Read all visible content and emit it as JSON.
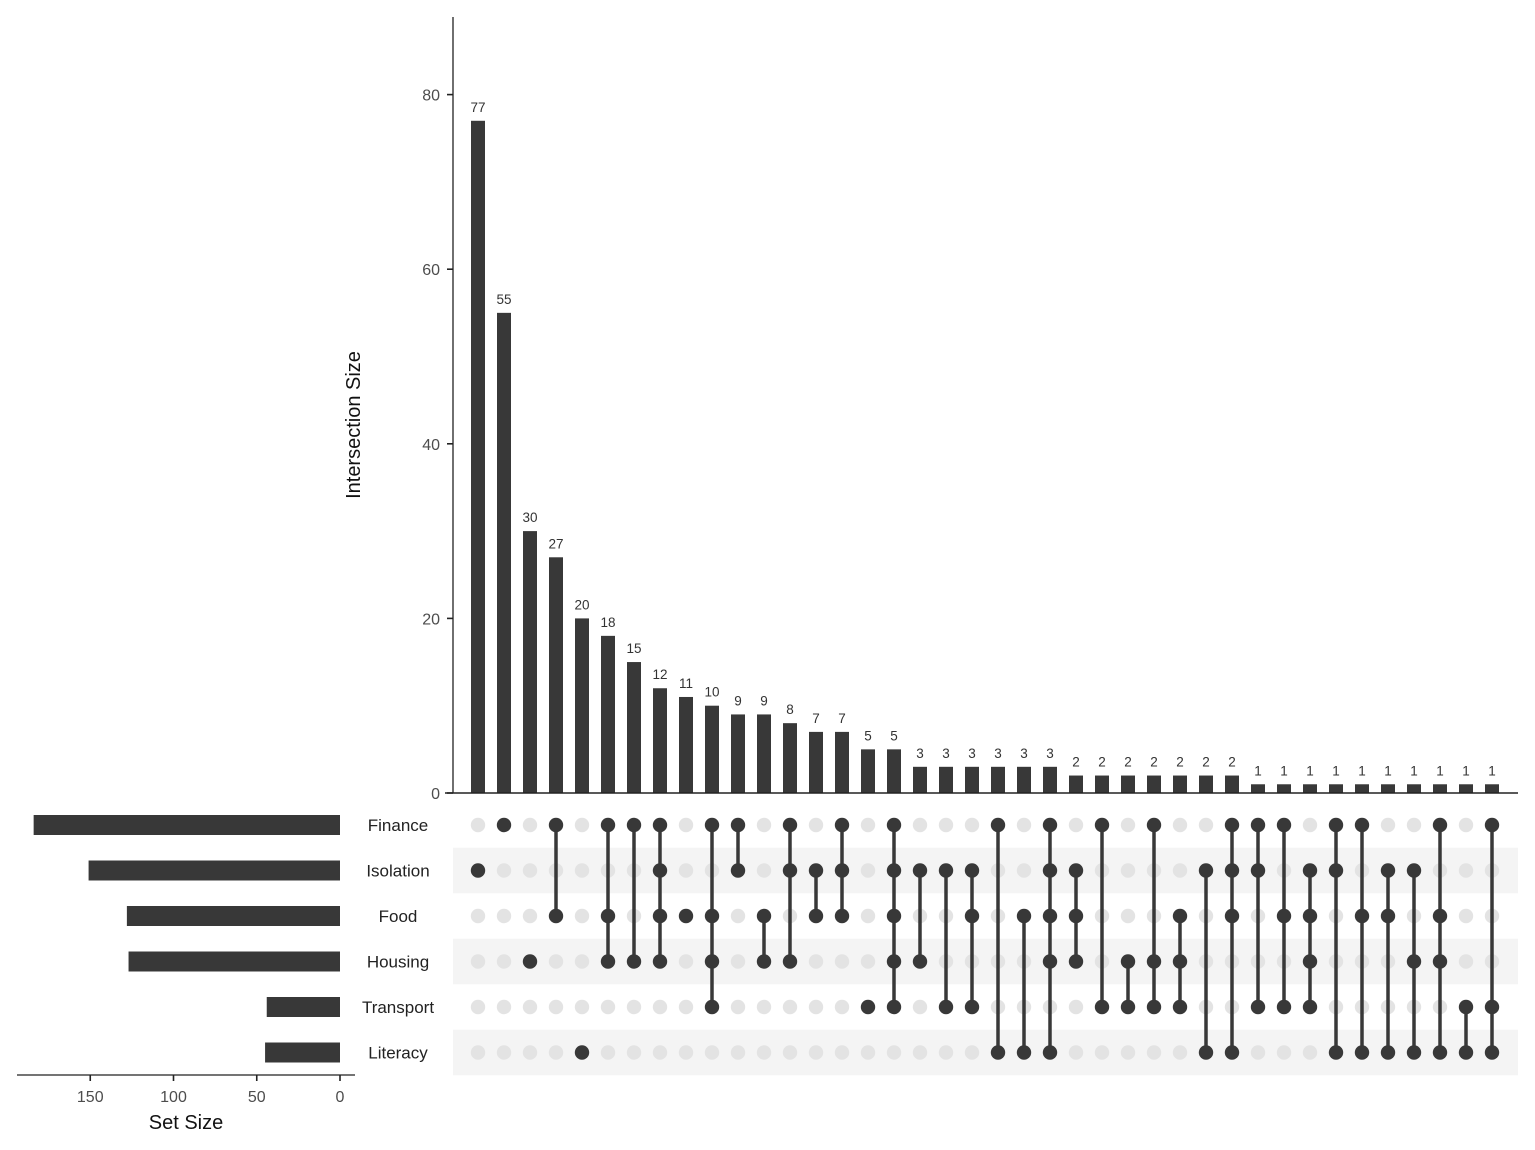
{
  "chart_data": {
    "type": "bar",
    "subtype": "upset",
    "title": "",
    "ylabel": "Intersection Size",
    "set_size_xlabel": "Set Size",
    "ylim": [
      0,
      88
    ],
    "yticks": [
      0,
      20,
      40,
      60,
      80
    ],
    "set_size_ticks": [
      150,
      100,
      50,
      0
    ],
    "sets": [
      "Finance",
      "Isolation",
      "Food",
      "Housing",
      "Transport",
      "Literacy"
    ],
    "set_sizes": [
      184,
      151,
      128,
      127,
      44,
      45
    ],
    "intersections": [
      {
        "sets": [
          "Isolation"
        ],
        "size": 77
      },
      {
        "sets": [
          "Finance"
        ],
        "size": 55
      },
      {
        "sets": [
          "Housing"
        ],
        "size": 30
      },
      {
        "sets": [
          "Finance",
          "Food"
        ],
        "size": 27
      },
      {
        "sets": [
          "Literacy"
        ],
        "size": 20
      },
      {
        "sets": [
          "Finance",
          "Food",
          "Housing"
        ],
        "size": 18
      },
      {
        "sets": [
          "Finance",
          "Housing"
        ],
        "size": 15
      },
      {
        "sets": [
          "Finance",
          "Isolation",
          "Food",
          "Housing"
        ],
        "size": 12
      },
      {
        "sets": [
          "Food"
        ],
        "size": 11
      },
      {
        "sets": [
          "Finance",
          "Food",
          "Housing",
          "Transport"
        ],
        "size": 10
      },
      {
        "sets": [
          "Finance",
          "Isolation"
        ],
        "size": 9
      },
      {
        "sets": [
          "Food",
          "Housing"
        ],
        "size": 9
      },
      {
        "sets": [
          "Finance",
          "Isolation",
          "Housing"
        ],
        "size": 8
      },
      {
        "sets": [
          "Isolation",
          "Food"
        ],
        "size": 7
      },
      {
        "sets": [
          "Finance",
          "Isolation",
          "Food"
        ],
        "size": 7
      },
      {
        "sets": [
          "Transport"
        ],
        "size": 5
      },
      {
        "sets": [
          "Finance",
          "Isolation",
          "Food",
          "Housing",
          "Transport"
        ],
        "size": 5
      },
      {
        "sets": [
          "Isolation",
          "Housing"
        ],
        "size": 3
      },
      {
        "sets": [
          "Isolation",
          "Transport"
        ],
        "size": 3
      },
      {
        "sets": [
          "Isolation",
          "Food",
          "Transport"
        ],
        "size": 3
      },
      {
        "sets": [
          "Finance",
          "Literacy"
        ],
        "size": 3
      },
      {
        "sets": [
          "Food",
          "Literacy"
        ],
        "size": 3
      },
      {
        "sets": [
          "Finance",
          "Isolation",
          "Food",
          "Housing",
          "Literacy"
        ],
        "size": 3
      },
      {
        "sets": [
          "Isolation",
          "Food",
          "Housing"
        ],
        "size": 2
      },
      {
        "sets": [
          "Finance",
          "Transport"
        ],
        "size": 2
      },
      {
        "sets": [
          "Housing",
          "Transport"
        ],
        "size": 2
      },
      {
        "sets": [
          "Finance",
          "Housing",
          "Transport"
        ],
        "size": 2
      },
      {
        "sets": [
          "Food",
          "Housing",
          "Transport"
        ],
        "size": 2
      },
      {
        "sets": [
          "Isolation",
          "Literacy"
        ],
        "size": 2
      },
      {
        "sets": [
          "Finance",
          "Isolation",
          "Food",
          "Literacy"
        ],
        "size": 2
      },
      {
        "sets": [
          "Finance",
          "Isolation",
          "Transport"
        ],
        "size": 1
      },
      {
        "sets": [
          "Finance",
          "Food",
          "Transport"
        ],
        "size": 1
      },
      {
        "sets": [
          "Isolation",
          "Food",
          "Housing",
          "Transport"
        ],
        "size": 1
      },
      {
        "sets": [
          "Finance",
          "Isolation",
          "Literacy"
        ],
        "size": 1
      },
      {
        "sets": [
          "Finance",
          "Food",
          "Literacy"
        ],
        "size": 1
      },
      {
        "sets": [
          "Isolation",
          "Food",
          "Literacy"
        ],
        "size": 1
      },
      {
        "sets": [
          "Isolation",
          "Housing",
          "Literacy"
        ],
        "size": 1
      },
      {
        "sets": [
          "Finance",
          "Food",
          "Housing",
          "Literacy"
        ],
        "size": 1
      },
      {
        "sets": [
          "Transport",
          "Literacy"
        ],
        "size": 1
      },
      {
        "sets": [
          "Finance",
          "Transport",
          "Literacy"
        ],
        "size": 1
      }
    ],
    "colors": {
      "bar": "#383838",
      "dot_active": "#383838",
      "dot_inactive": "#e3e3e3",
      "stripe": "#f4f4f4",
      "axis": "#222222"
    },
    "grid": false,
    "legend": "none"
  },
  "labels": {
    "y_axis_title": "Intersection Size",
    "set_size_title": "Set Size"
  }
}
